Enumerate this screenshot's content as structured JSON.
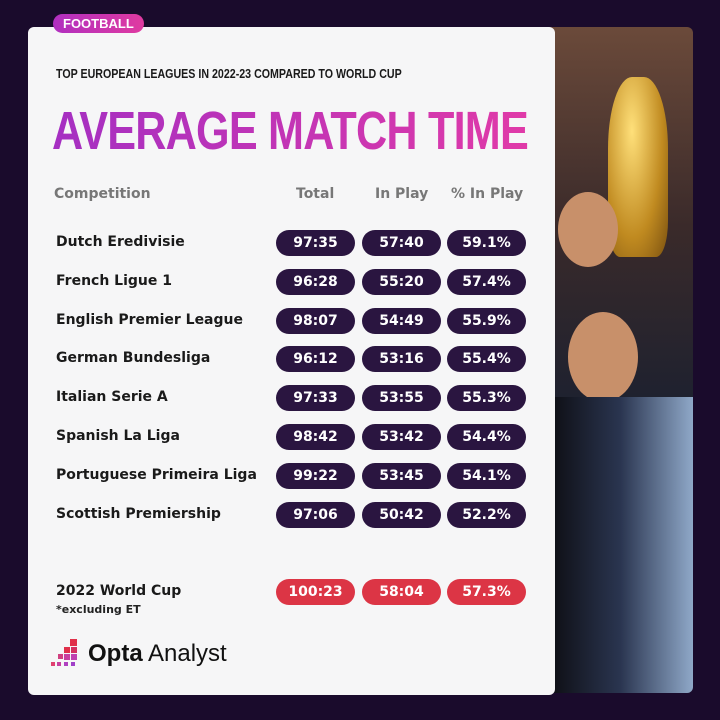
{
  "tag": "FOOTBALL",
  "subtitle": "TOP EUROPEAN LEAGUES IN 2022-23 COMPARED TO WORLD CUP",
  "title": "AVERAGE MATCH TIME",
  "headers": {
    "competition": "Competition",
    "total": "Total",
    "in_play": "In Play",
    "pct": "% In Play"
  },
  "rows": [
    {
      "name": "Dutch Eredivisie",
      "total": "97:35",
      "in_play": "57:40",
      "pct": "59.1%"
    },
    {
      "name": "French Ligue 1",
      "total": "96:28",
      "in_play": "55:20",
      "pct": "57.4%"
    },
    {
      "name": "English Premier League",
      "total": "98:07",
      "in_play": "54:49",
      "pct": "55.9%"
    },
    {
      "name": "German Bundesliga",
      "total": "96:12",
      "in_play": "53:16",
      "pct": "55.4%"
    },
    {
      "name": "Italian Serie A",
      "total": "97:33",
      "in_play": "53:55",
      "pct": "55.3%"
    },
    {
      "name": "Spanish La Liga",
      "total": "98:42",
      "in_play": "53:42",
      "pct": "54.4%"
    },
    {
      "name": "Portuguese Primeira Liga",
      "total": "99:22",
      "in_play": "53:45",
      "pct": "54.1%"
    },
    {
      "name": "Scottish Premiership",
      "total": "97:06",
      "in_play": "50:42",
      "pct": "52.2%"
    }
  ],
  "world_cup": {
    "name": "2022 World Cup",
    "note": "*excluding ET",
    "total": "100:23",
    "in_play": "58:04",
    "pct": "57.3%"
  },
  "logo": {
    "bold": "Opta",
    "rest": " Analyst"
  },
  "colors": {
    "background": "#1a0b2c",
    "pill": "#2a1540",
    "world_cup_pill": "#dc3545",
    "title_gradient": [
      "#a52fc2",
      "#e03aa8"
    ]
  }
}
